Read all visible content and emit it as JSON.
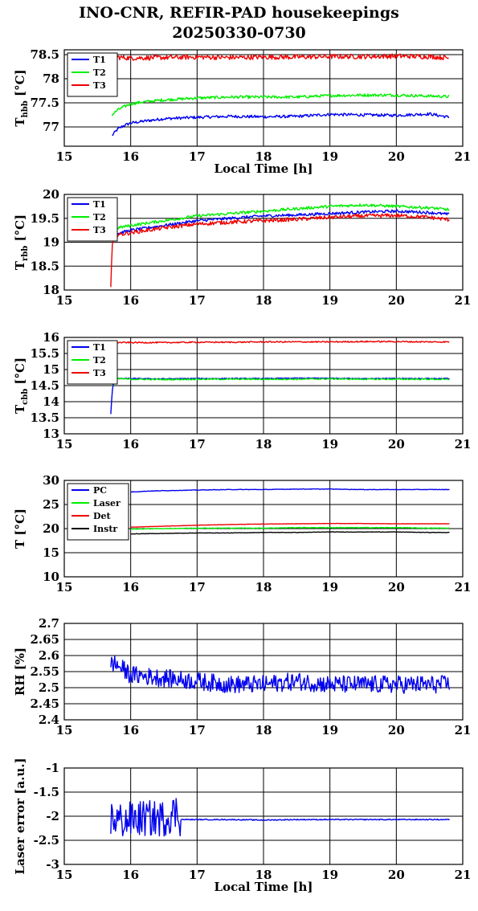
{
  "title_lines": [
    "INO-CNR, REFIR-PAD housekeepings",
    "20250330-0730"
  ],
  "colors": {
    "blue": "#0000ee",
    "green": "#00ee00",
    "red": "#ee0000",
    "black": "#000000"
  },
  "chart_data": [
    {
      "type": "line",
      "ylabel_main": "T",
      "ylabel_sub": "hbb",
      "ylabel_tail": " [°C]",
      "xlabel": "Local Time [h]",
      "xlim": [
        15,
        21
      ],
      "ylim": [
        76.6,
        78.6
      ],
      "yticks": [
        77,
        77.5,
        78,
        78.5
      ],
      "ytick_labels": [
        "77",
        "77.5",
        "78",
        "78.5"
      ],
      "xticks": [
        15,
        16,
        17,
        18,
        19,
        20,
        21
      ],
      "xtick_labels": [
        "15",
        "16",
        "17",
        "18",
        "19",
        "20",
        "21"
      ],
      "grid": true,
      "legend_position": "top-left",
      "series": [
        {
          "name": "T1",
          "color": "#0000ee",
          "x": [
            15.72,
            15.8,
            15.9,
            16.0,
            16.2,
            16.5,
            17.0,
            17.5,
            18.0,
            18.5,
            19.0,
            19.5,
            20.0,
            20.5,
            20.8
          ],
          "y": [
            76.82,
            76.95,
            77.03,
            77.08,
            77.12,
            77.17,
            77.2,
            77.22,
            77.21,
            77.22,
            77.26,
            77.25,
            77.24,
            77.27,
            77.2
          ],
          "noise": 0.03
        },
        {
          "name": "T2",
          "color": "#00ee00",
          "x": [
            15.72,
            15.8,
            15.9,
            16.0,
            16.2,
            16.5,
            17.0,
            17.5,
            18.0,
            18.5,
            19.0,
            19.5,
            20.0,
            20.5,
            20.8
          ],
          "y": [
            77.25,
            77.35,
            77.42,
            77.48,
            77.52,
            77.56,
            77.6,
            77.62,
            77.62,
            77.62,
            77.65,
            77.66,
            77.66,
            77.64,
            77.63
          ],
          "noise": 0.03
        },
        {
          "name": "T3",
          "color": "#ee0000",
          "x": [
            15.75,
            16.0,
            16.5,
            17.0,
            17.5,
            18.0,
            18.5,
            19.0,
            19.5,
            20.0,
            20.5,
            20.8
          ],
          "y": [
            78.45,
            78.43,
            78.44,
            78.45,
            78.44,
            78.45,
            78.45,
            78.46,
            78.46,
            78.47,
            78.46,
            78.43
          ],
          "noise": 0.05
        }
      ]
    },
    {
      "type": "line",
      "ylabel_main": "T",
      "ylabel_sub": "rbb",
      "ylabel_tail": " [°C]",
      "xlabel": "",
      "xlim": [
        15,
        21
      ],
      "ylim": [
        18,
        20
      ],
      "yticks": [
        18,
        18.5,
        19,
        19.5,
        20
      ],
      "ytick_labels": [
        "18",
        "18.5",
        "19",
        "19.5",
        "20"
      ],
      "xticks": [
        15,
        16,
        17,
        18,
        19,
        20,
        21
      ],
      "xtick_labels": [
        "15",
        "16",
        "17",
        "18",
        "19",
        "20",
        "21"
      ],
      "grid": true,
      "legend_position": "top-left",
      "series": [
        {
          "name": "T1",
          "color": "#0000ee",
          "x": [
            15.72,
            15.8,
            16.0,
            16.5,
            17.0,
            17.5,
            18.0,
            18.5,
            19.0,
            19.5,
            20.0,
            20.5,
            20.8
          ],
          "y": [
            19.05,
            19.18,
            19.25,
            19.35,
            19.45,
            19.5,
            19.55,
            19.57,
            19.6,
            19.63,
            19.65,
            19.62,
            19.58
          ],
          "noise": 0.03
        },
        {
          "name": "T2",
          "color": "#00ee00",
          "x": [
            15.72,
            15.8,
            16.0,
            16.5,
            17.0,
            17.5,
            18.0,
            18.5,
            19.0,
            19.5,
            20.0,
            20.5,
            20.8
          ],
          "y": [
            19.2,
            19.3,
            19.35,
            19.45,
            19.55,
            19.6,
            19.65,
            19.7,
            19.75,
            19.78,
            19.75,
            19.72,
            19.68
          ],
          "noise": 0.03
        },
        {
          "name": "T3",
          "color": "#ee0000",
          "x": [
            15.7,
            15.72,
            15.75,
            15.8,
            16.0,
            16.5,
            17.0,
            17.5,
            18.0,
            18.5,
            19.0,
            19.5,
            20.0,
            20.5,
            20.8
          ],
          "y": [
            18.05,
            18.9,
            19.1,
            19.15,
            19.2,
            19.3,
            19.38,
            19.42,
            19.45,
            19.48,
            19.52,
            19.55,
            19.56,
            19.52,
            19.47
          ],
          "noise": 0.04
        }
      ]
    },
    {
      "type": "line",
      "ylabel_main": "T",
      "ylabel_sub": "cbb",
      "ylabel_tail": " [°C]",
      "xlabel": "",
      "xlim": [
        15,
        21
      ],
      "ylim": [
        13,
        16
      ],
      "yticks": [
        13,
        13.5,
        14,
        14.5,
        15,
        15.5,
        16
      ],
      "ytick_labels": [
        "13",
        "13.5",
        "14",
        "14.5",
        "15",
        "15.5",
        "16"
      ],
      "xticks": [
        15,
        16,
        17,
        18,
        19,
        20,
        21
      ],
      "xtick_labels": [
        "15",
        "16",
        "17",
        "18",
        "19",
        "20",
        "21"
      ],
      "grid": true,
      "legend_position": "top-left",
      "series": [
        {
          "name": "T1",
          "color": "#0000ee",
          "x": [
            15.7,
            15.72,
            15.75,
            15.8,
            16.0,
            16.5,
            17.0,
            17.5,
            18.0,
            18.5,
            19.0,
            19.5,
            20.0,
            20.5,
            20.8
          ],
          "y": [
            13.62,
            14.3,
            14.7,
            14.72,
            14.72,
            14.71,
            14.72,
            14.72,
            14.72,
            14.73,
            14.73,
            14.72,
            14.72,
            14.72,
            14.72
          ],
          "noise": 0.015
        },
        {
          "name": "T2",
          "color": "#00ee00",
          "x": [
            15.72,
            15.75,
            15.8,
            16.0,
            16.5,
            17.0,
            17.5,
            18.0,
            18.5,
            19.0,
            19.5,
            20.0,
            20.5,
            20.8
          ],
          "y": [
            14.5,
            14.7,
            14.72,
            14.7,
            14.69,
            14.7,
            14.7,
            14.7,
            14.7,
            14.71,
            14.7,
            14.7,
            14.7,
            14.69
          ],
          "noise": 0.02
        },
        {
          "name": "T3",
          "color": "#ee0000",
          "x": [
            15.72,
            16.0,
            16.5,
            17.0,
            17.5,
            18.0,
            18.5,
            19.0,
            19.5,
            20.0,
            20.5,
            20.8
          ],
          "y": [
            15.84,
            15.84,
            15.84,
            15.85,
            15.85,
            15.86,
            15.86,
            15.86,
            15.87,
            15.87,
            15.86,
            15.86
          ],
          "noise": 0.02
        }
      ]
    },
    {
      "type": "line",
      "ylabel_main": "T [°C]",
      "ylabel_sub": "",
      "ylabel_tail": "",
      "xlabel": "",
      "xlim": [
        15,
        21
      ],
      "ylim": [
        10,
        30
      ],
      "yticks": [
        10,
        15,
        20,
        25,
        30
      ],
      "ytick_labels": [
        "10",
        "15",
        "20",
        "25",
        "30"
      ],
      "xticks": [
        15,
        16,
        17,
        18,
        19,
        20,
        21
      ],
      "xtick_labels": [
        "15",
        "16",
        "17",
        "18",
        "19",
        "20",
        "21"
      ],
      "grid": true,
      "legend_position": "top-left",
      "series": [
        {
          "name": "PC",
          "color": "#0000ee",
          "x": [
            16.0,
            16.3,
            16.6,
            17.0,
            17.5,
            18.0,
            18.5,
            19.0,
            19.5,
            20.0,
            20.5,
            20.8
          ],
          "y": [
            27.6,
            27.8,
            27.9,
            28.0,
            28.1,
            28.1,
            28.2,
            28.2,
            28.1,
            28.1,
            28.1,
            28.1
          ],
          "noise": 0.05
        },
        {
          "name": "Laser",
          "color": "#00ee00",
          "x": [
            16.0,
            16.5,
            17.0,
            17.5,
            18.0,
            18.5,
            19.0,
            19.5,
            20.0,
            20.5,
            20.8
          ],
          "y": [
            19.9,
            20.0,
            20.1,
            20.1,
            20.1,
            20.2,
            20.2,
            20.2,
            20.2,
            20.1,
            20.1
          ],
          "noise": 0.06
        },
        {
          "name": "Det",
          "color": "#ee0000",
          "x": [
            16.0,
            16.5,
            17.0,
            17.5,
            18.0,
            18.5,
            19.0,
            19.5,
            20.0,
            20.5,
            20.8
          ],
          "y": [
            20.3,
            20.5,
            20.7,
            20.85,
            20.95,
            21.0,
            21.05,
            21.05,
            21.0,
            21.0,
            21.0
          ],
          "noise": 0.03
        },
        {
          "name": "Instr",
          "color": "#000000",
          "x": [
            16.0,
            16.5,
            17.0,
            17.5,
            18.0,
            18.5,
            19.0,
            19.5,
            20.0,
            20.5,
            20.8
          ],
          "y": [
            18.9,
            19.0,
            19.1,
            19.1,
            19.2,
            19.2,
            19.3,
            19.3,
            19.3,
            19.2,
            19.2
          ],
          "noise": 0.04
        }
      ]
    },
    {
      "type": "line",
      "ylabel_main": "RH [%]",
      "ylabel_sub": "",
      "ylabel_tail": "",
      "xlabel": "",
      "xlim": [
        15,
        21
      ],
      "ylim": [
        2.4,
        2.7
      ],
      "yticks": [
        2.4,
        2.45,
        2.5,
        2.55,
        2.6,
        2.65,
        2.7
      ],
      "ytick_labels": [
        "2.4",
        "2.45",
        "2.5",
        "2.55",
        "2.6",
        "2.65",
        "2.7"
      ],
      "xticks": [
        15,
        16,
        17,
        18,
        19,
        20,
        21
      ],
      "xtick_labels": [
        "15",
        "16",
        "17",
        "18",
        "19",
        "20",
        "21"
      ],
      "grid": true,
      "legend_position": "none",
      "series": [
        {
          "name": "",
          "color": "#0000ee",
          "x": [
            15.7,
            15.8,
            16.0,
            16.5,
            17.0,
            17.5,
            18.0,
            18.5,
            19.0,
            19.5,
            20.0,
            20.5,
            20.8
          ],
          "y": [
            2.58,
            2.57,
            2.54,
            2.53,
            2.52,
            2.51,
            2.51,
            2.52,
            2.51,
            2.51,
            2.51,
            2.51,
            2.51
          ],
          "noise": 0.028
        }
      ]
    },
    {
      "type": "line",
      "ylabel_main": "Laser error [a.u.]",
      "ylabel_sub": "",
      "ylabel_tail": "",
      "xlabel": "Local Time [h]",
      "xlim": [
        15,
        21
      ],
      "ylim": [
        -3,
        -1
      ],
      "yticks": [
        -3,
        -2.5,
        -2,
        -1.5,
        -1
      ],
      "ytick_labels": [
        "-3",
        "-2.5",
        "-2",
        "-1.5",
        "-1"
      ],
      "xticks": [
        15,
        16,
        17,
        18,
        19,
        20,
        21
      ],
      "xtick_labels": [
        "15",
        "16",
        "17",
        "18",
        "19",
        "20",
        "21"
      ],
      "grid": true,
      "legend_position": "none",
      "series": [
        {
          "name": "",
          "color": "#0000ee",
          "x": [
            15.7,
            15.9,
            16.1,
            16.3,
            16.5,
            16.7,
            16.75,
            16.8,
            17.0,
            17.5,
            18.0,
            18.5,
            19.0,
            19.5,
            20.0,
            20.5,
            20.8
          ],
          "y": [
            -2.05,
            -2.1,
            -2.05,
            -2.05,
            -2.05,
            -1.9,
            -2.07,
            -2.07,
            -2.07,
            -2.07,
            -2.08,
            -2.07,
            -2.07,
            -2.07,
            -2.07,
            -2.07,
            -2.07
          ],
          "noise": 0.01,
          "burst_until": 16.75,
          "burst_amp": 0.38
        }
      ]
    }
  ]
}
